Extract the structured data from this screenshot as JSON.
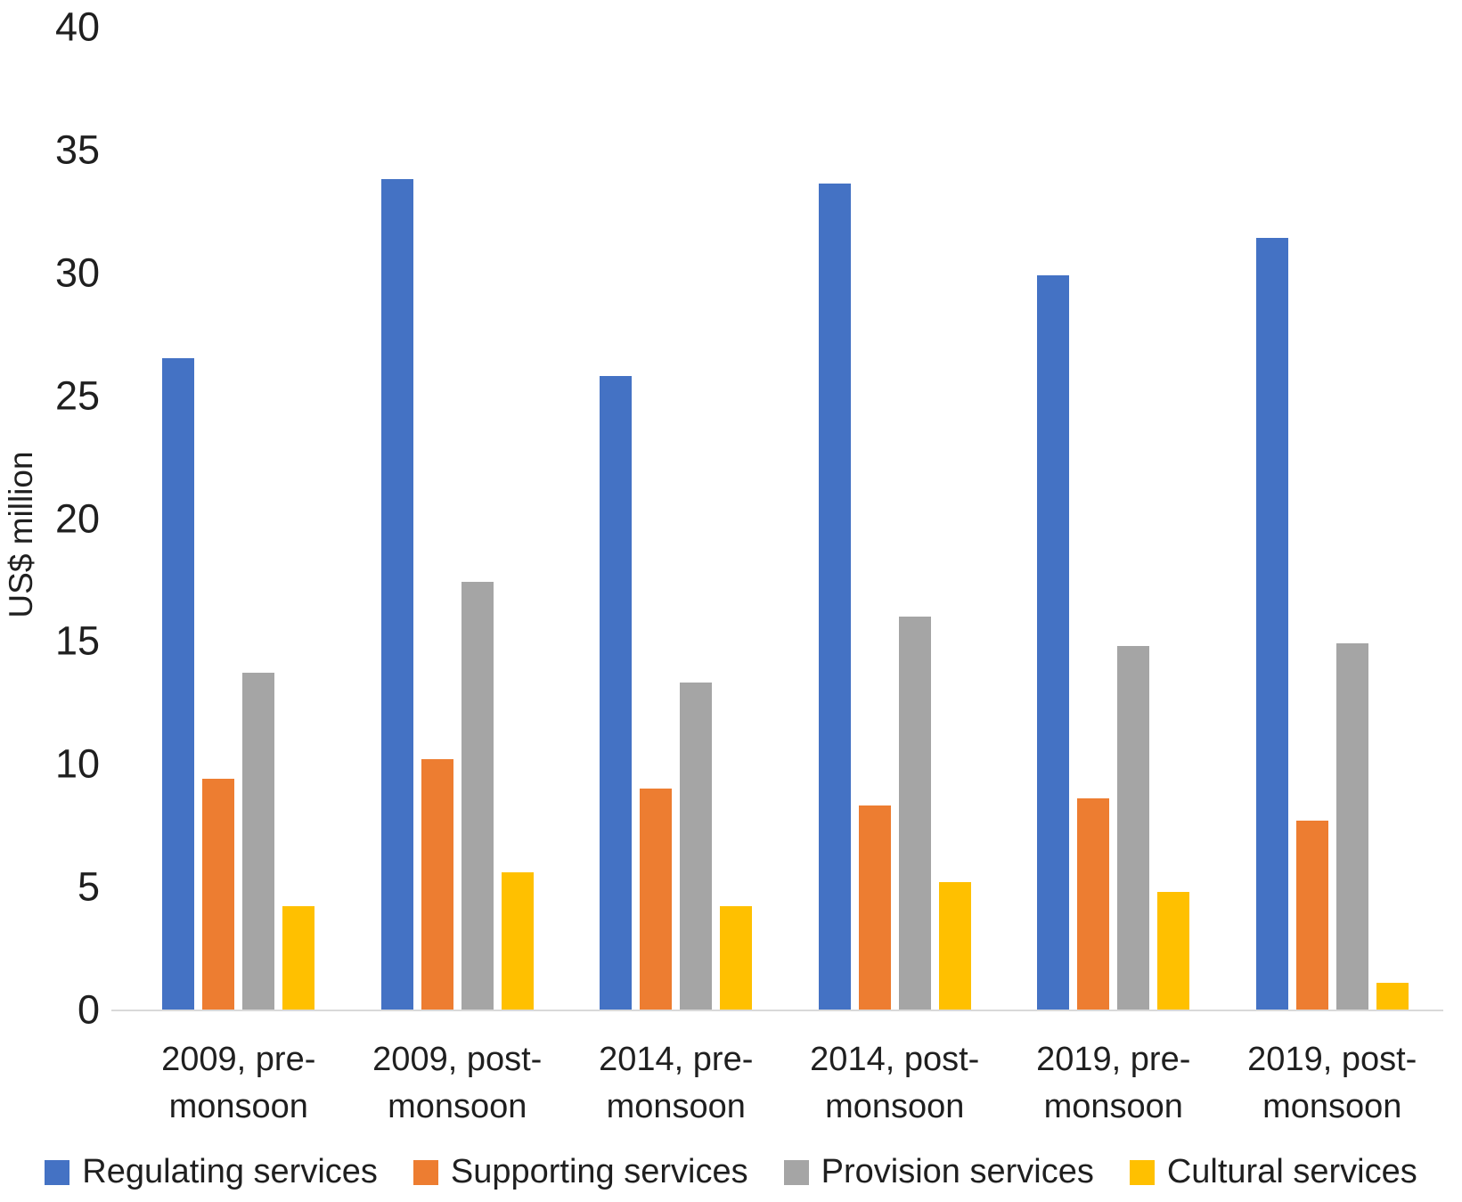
{
  "chart_data": {
    "type": "bar",
    "title": "",
    "xlabel": "",
    "ylabel": "US$ million",
    "ylim": [
      0,
      40
    ],
    "yticks": [
      0,
      5,
      10,
      15,
      20,
      25,
      30,
      35,
      40
    ],
    "grid": false,
    "legend_position": "bottom",
    "categories": [
      "2009, pre-monsoon",
      "2009, post-monsoon",
      "2014, pre-monsoon",
      "2014, post-monsoon",
      "2019, pre-monsoon",
      "2019, post-monsoon"
    ],
    "category_lines": [
      [
        "2009, pre-",
        "monsoon"
      ],
      [
        "2009, post-",
        "monsoon"
      ],
      [
        "2014, pre-",
        "monsoon"
      ],
      [
        "2014, post-",
        "monsoon"
      ],
      [
        "2019, pre-",
        "monsoon"
      ],
      [
        "2019, post-",
        "monsoon"
      ]
    ],
    "series": [
      {
        "name": "Regulating services",
        "color": "#4472C4",
        "values": [
          26.5,
          33.8,
          25.8,
          33.6,
          29.9,
          31.4
        ]
      },
      {
        "name": "Supporting services",
        "color": "#ED7D31",
        "values": [
          9.4,
          10.2,
          9.0,
          8.3,
          8.6,
          7.7
        ]
      },
      {
        "name": "Provision services",
        "color": "#A5A5A5",
        "values": [
          13.7,
          17.4,
          13.3,
          16.0,
          14.8,
          14.9
        ]
      },
      {
        "name": "Cultural services",
        "color": "#FFC000",
        "values": [
          4.2,
          5.6,
          4.2,
          5.2,
          4.8,
          1.1
        ]
      }
    ]
  },
  "colors": {
    "axis_line": "#D9D9D9",
    "text": "#1F1F1F",
    "background": "#FFFFFF"
  }
}
